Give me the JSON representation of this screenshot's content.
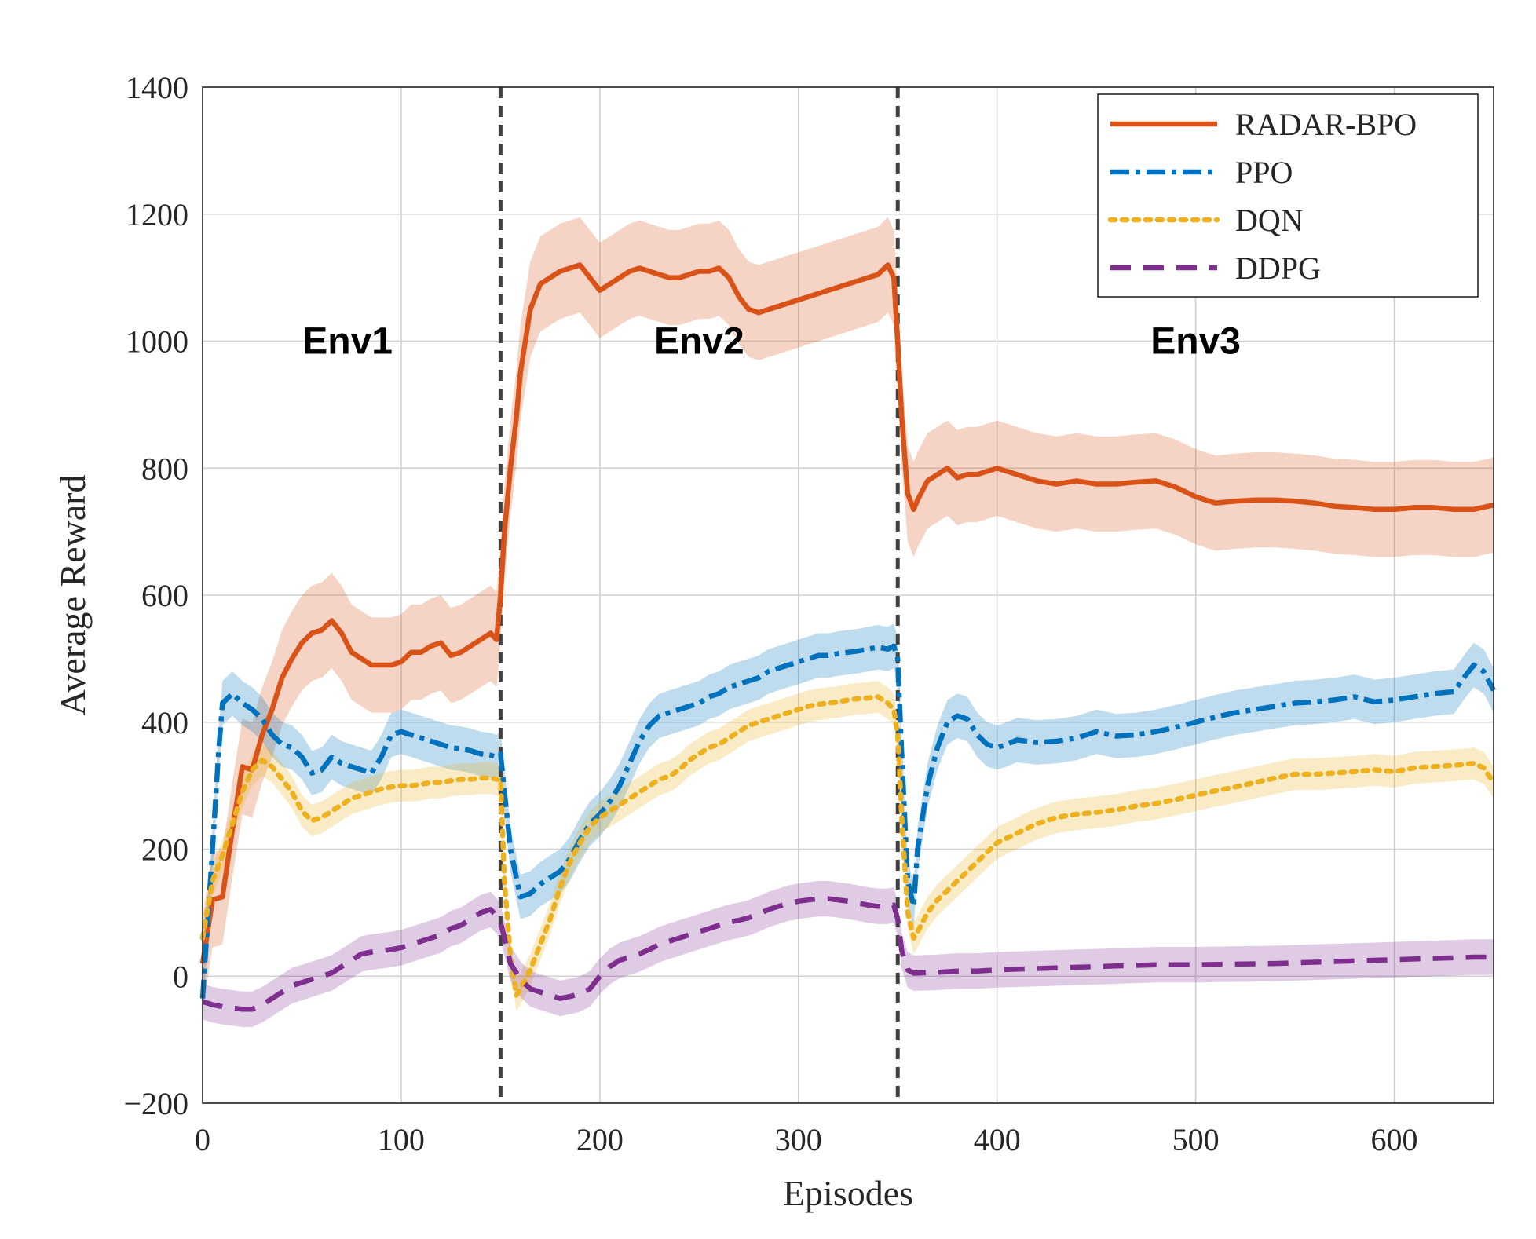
{
  "chart_data": {
    "type": "line",
    "title": "",
    "xlabel": "Episodes",
    "ylabel": "Average Reward",
    "xlim": [
      0,
      650
    ],
    "ylim": [
      -200,
      1400
    ],
    "xticks": [
      0,
      100,
      200,
      300,
      400,
      500,
      600
    ],
    "yticks": [
      -200,
      0,
      200,
      400,
      600,
      800,
      1000,
      1200,
      1400
    ],
    "xtick_labels": [
      "0",
      "100",
      "200",
      "300",
      "400",
      "500",
      "600"
    ],
    "ytick_labels": [
      "−200",
      "0",
      "200",
      "400",
      "600",
      "800",
      "1000",
      "1200",
      "1400"
    ],
    "grid": true,
    "legend_position": "top-right",
    "env_dividers": [
      150,
      350
    ],
    "annotations": [
      {
        "text": "Env1",
        "x": 73,
        "y": 1000
      },
      {
        "text": "Env2",
        "x": 250,
        "y": 1000
      },
      {
        "text": "Env3",
        "x": 500,
        "y": 1000
      }
    ],
    "series": [
      {
        "name": "RADAR-BPO",
        "color": "#d95319",
        "style": "solid",
        "x": [
          0,
          5,
          10,
          15,
          20,
          25,
          30,
          35,
          40,
          45,
          50,
          55,
          60,
          65,
          70,
          75,
          80,
          85,
          90,
          95,
          100,
          105,
          110,
          115,
          120,
          125,
          130,
          135,
          140,
          145,
          148,
          150,
          152,
          155,
          158,
          160,
          165,
          170,
          175,
          180,
          185,
          190,
          195,
          200,
          205,
          210,
          215,
          220,
          225,
          230,
          235,
          240,
          245,
          250,
          255,
          260,
          265,
          270,
          275,
          280,
          285,
          290,
          295,
          300,
          305,
          310,
          315,
          320,
          325,
          330,
          335,
          340,
          345,
          348,
          350,
          352,
          355,
          358,
          360,
          365,
          370,
          375,
          380,
          385,
          390,
          395,
          400,
          410,
          420,
          430,
          440,
          450,
          460,
          470,
          480,
          490,
          500,
          510,
          520,
          530,
          540,
          550,
          560,
          570,
          580,
          590,
          600,
          610,
          620,
          630,
          640,
          650
        ],
        "values": [
          20,
          120,
          125,
          230,
          330,
          325,
          380,
          420,
          470,
          500,
          525,
          540,
          545,
          560,
          540,
          510,
          500,
          490,
          490,
          490,
          495,
          510,
          510,
          520,
          525,
          505,
          510,
          520,
          530,
          540,
          530,
          600,
          700,
          800,
          880,
          950,
          1050,
          1090,
          1100,
          1110,
          1115,
          1120,
          1100,
          1080,
          1090,
          1100,
          1110,
          1115,
          1110,
          1105,
          1100,
          1100,
          1105,
          1110,
          1110,
          1115,
          1100,
          1070,
          1050,
          1045,
          1050,
          1055,
          1060,
          1065,
          1070,
          1075,
          1080,
          1085,
          1090,
          1095,
          1100,
          1105,
          1120,
          1100,
          1000,
          880,
          760,
          735,
          750,
          780,
          790,
          800,
          785,
          790,
          790,
          795,
          800,
          790,
          780,
          775,
          780,
          775,
          775,
          778,
          780,
          770,
          755,
          745,
          748,
          750,
          750,
          748,
          745,
          740,
          738,
          735,
          735,
          738,
          738,
          735,
          735,
          742
        ]
      },
      {
        "name": "PPO",
        "color": "#0072bd",
        "style": "dash-dot",
        "x": [
          0,
          5,
          8,
          10,
          15,
          20,
          25,
          30,
          35,
          40,
          45,
          50,
          55,
          60,
          65,
          70,
          75,
          80,
          85,
          90,
          95,
          100,
          105,
          110,
          115,
          120,
          125,
          130,
          135,
          140,
          145,
          148,
          150,
          155,
          160,
          165,
          170,
          175,
          180,
          185,
          190,
          195,
          200,
          205,
          210,
          215,
          220,
          225,
          230,
          235,
          240,
          245,
          250,
          255,
          260,
          265,
          270,
          275,
          280,
          285,
          290,
          295,
          300,
          305,
          310,
          315,
          320,
          325,
          330,
          335,
          340,
          345,
          348,
          350,
          352,
          355,
          358,
          360,
          365,
          370,
          375,
          380,
          385,
          390,
          395,
          400,
          405,
          410,
          420,
          430,
          440,
          450,
          460,
          470,
          480,
          490,
          500,
          510,
          520,
          530,
          540,
          550,
          560,
          570,
          580,
          590,
          600,
          610,
          620,
          630,
          635,
          640,
          645,
          650
        ],
        "values": [
          -35,
          200,
          350,
          430,
          445,
          430,
          420,
          405,
          380,
          365,
          360,
          345,
          320,
          325,
          345,
          335,
          330,
          325,
          320,
          345,
          380,
          385,
          380,
          375,
          370,
          365,
          360,
          358,
          355,
          350,
          348,
          345,
          350,
          200,
          125,
          130,
          145,
          155,
          165,
          185,
          215,
          240,
          255,
          275,
          300,
          335,
          370,
          395,
          410,
          415,
          420,
          425,
          430,
          440,
          445,
          455,
          460,
          465,
          470,
          480,
          485,
          490,
          495,
          500,
          505,
          505,
          508,
          510,
          512,
          515,
          518,
          515,
          520,
          500,
          350,
          150,
          110,
          200,
          300,
          360,
          400,
          410,
          405,
          380,
          365,
          360,
          365,
          372,
          368,
          370,
          375,
          385,
          378,
          380,
          385,
          392,
          400,
          408,
          415,
          420,
          425,
          430,
          432,
          435,
          440,
          432,
          435,
          440,
          445,
          448,
          470,
          490,
          480,
          450
        ]
      },
      {
        "name": "DQN",
        "color": "#edb120",
        "style": "dotted",
        "x": [
          0,
          5,
          10,
          15,
          20,
          25,
          30,
          35,
          40,
          45,
          50,
          55,
          60,
          65,
          70,
          75,
          80,
          85,
          90,
          95,
          100,
          105,
          110,
          115,
          120,
          125,
          130,
          135,
          140,
          145,
          148,
          150,
          152,
          155,
          158,
          160,
          165,
          170,
          175,
          180,
          185,
          190,
          195,
          200,
          205,
          210,
          215,
          220,
          225,
          230,
          235,
          240,
          245,
          250,
          255,
          260,
          265,
          270,
          275,
          280,
          285,
          290,
          295,
          300,
          305,
          310,
          315,
          320,
          325,
          330,
          335,
          340,
          345,
          348,
          350,
          352,
          355,
          358,
          360,
          365,
          370,
          375,
          380,
          385,
          390,
          395,
          400,
          410,
          420,
          430,
          440,
          450,
          460,
          470,
          480,
          490,
          500,
          510,
          520,
          530,
          540,
          550,
          560,
          570,
          580,
          590,
          600,
          610,
          620,
          630,
          640,
          645,
          650
        ],
        "values": [
          60,
          150,
          190,
          240,
          290,
          325,
          340,
          330,
          310,
          290,
          260,
          245,
          250,
          260,
          270,
          280,
          285,
          290,
          295,
          298,
          300,
          300,
          302,
          305,
          305,
          308,
          310,
          310,
          312,
          312,
          310,
          310,
          150,
          30,
          -30,
          -20,
          10,
          50,
          90,
          140,
          180,
          210,
          235,
          250,
          260,
          270,
          280,
          290,
          300,
          310,
          315,
          325,
          340,
          350,
          360,
          365,
          375,
          385,
          395,
          400,
          405,
          410,
          415,
          420,
          425,
          428,
          430,
          432,
          435,
          437,
          438,
          440,
          430,
          420,
          380,
          250,
          100,
          60,
          70,
          100,
          120,
          135,
          150,
          165,
          180,
          195,
          210,
          225,
          240,
          250,
          255,
          258,
          262,
          268,
          272,
          278,
          285,
          292,
          298,
          305,
          312,
          318,
          318,
          320,
          322,
          325,
          322,
          328,
          330,
          332,
          335,
          328,
          305
        ]
      },
      {
        "name": "DDPG",
        "color": "#7e2f8e",
        "style": "dashed",
        "x": [
          0,
          5,
          10,
          15,
          20,
          25,
          30,
          35,
          40,
          45,
          50,
          55,
          60,
          65,
          70,
          75,
          80,
          85,
          90,
          95,
          100,
          105,
          110,
          115,
          120,
          125,
          130,
          135,
          140,
          145,
          148,
          150,
          152,
          155,
          160,
          165,
          170,
          175,
          180,
          185,
          190,
          195,
          200,
          205,
          210,
          215,
          220,
          225,
          230,
          235,
          240,
          245,
          250,
          255,
          260,
          265,
          270,
          275,
          280,
          285,
          290,
          295,
          300,
          305,
          310,
          315,
          320,
          325,
          330,
          335,
          340,
          345,
          348,
          350,
          352,
          355,
          358,
          360,
          370,
          380,
          390,
          400,
          420,
          440,
          460,
          480,
          500,
          520,
          540,
          560,
          580,
          600,
          620,
          640,
          650
        ],
        "values": [
          -40,
          -45,
          -48,
          -50,
          -52,
          -52,
          -45,
          -35,
          -25,
          -15,
          -10,
          -5,
          0,
          5,
          15,
          25,
          35,
          38,
          40,
          42,
          45,
          50,
          55,
          60,
          65,
          75,
          80,
          90,
          100,
          105,
          95,
          85,
          60,
          20,
          -5,
          -20,
          -25,
          -30,
          -35,
          -32,
          -28,
          -20,
          0,
          15,
          25,
          30,
          35,
          42,
          50,
          55,
          60,
          65,
          70,
          75,
          80,
          85,
          88,
          92,
          98,
          105,
          110,
          115,
          118,
          120,
          122,
          122,
          120,
          118,
          115,
          112,
          110,
          110,
          112,
          90,
          40,
          10,
          5,
          5,
          6,
          8,
          8,
          10,
          12,
          14,
          16,
          18,
          18,
          19,
          20,
          22,
          24,
          26,
          28,
          30,
          30
        ]
      }
    ]
  }
}
